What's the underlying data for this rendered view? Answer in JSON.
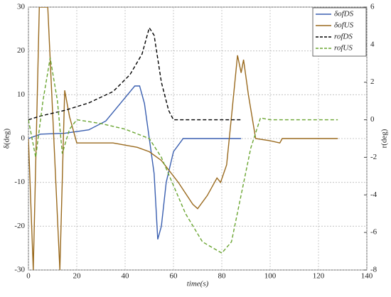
{
  "chart_data": {
    "type": "line",
    "x_label": "time(s)",
    "y_label": "δ(deg)",
    "y2_label": "r(deg)",
    "xlim": [
      0,
      140
    ],
    "xticks": [
      0,
      20,
      40,
      60,
      80,
      100,
      120,
      140
    ],
    "ylim": [
      -30,
      30
    ],
    "yticks": [
      -30,
      -20,
      -10,
      0,
      10,
      20,
      30
    ],
    "y2lim": [
      -8,
      6
    ],
    "y2ticks": [
      -8,
      -6,
      -4,
      -2,
      0,
      2,
      4,
      6
    ],
    "grid": true,
    "legend": "upper right",
    "series": [
      {
        "name": "δofDS",
        "color": "#3a5fb0",
        "dash": false,
        "x": [
          0,
          5,
          15,
          25,
          32,
          38,
          44,
          46,
          48,
          50,
          52,
          53.5,
          55,
          57,
          60,
          64,
          70,
          88
        ],
        "values": [
          0,
          1,
          1.2,
          2,
          4,
          8,
          12,
          12,
          8,
          0,
          -8,
          -23,
          -20,
          -10,
          -3,
          0,
          0,
          0
        ]
      },
      {
        "name": "δofUS",
        "color": "#9a6a1e",
        "dash": false,
        "x": [
          0,
          2,
          4.5,
          8,
          13,
          15,
          17,
          20,
          25,
          35,
          45,
          50,
          55,
          62,
          68,
          70,
          74,
          78,
          79.5,
          82,
          84,
          86.5,
          88,
          89,
          91,
          94,
          100,
          104,
          105,
          128
        ],
        "values": [
          0,
          -30,
          30,
          30,
          -30,
          11,
          5,
          -1,
          -1,
          -1,
          -2,
          -3,
          -5,
          -10,
          -15,
          -16,
          -13,
          -9,
          -10,
          -6,
          5,
          19,
          15,
          18,
          10,
          0,
          -0.5,
          -1,
          0,
          0
        ]
      },
      {
        "name": "rofDS",
        "color": "#000000",
        "dash": true,
        "axis": "y2",
        "x": [
          0,
          5,
          15,
          25,
          35,
          42,
          47,
          50,
          52,
          55,
          58,
          60,
          88
        ],
        "values": [
          0,
          0.2,
          0.5,
          0.9,
          1.5,
          2.4,
          3.5,
          4.9,
          4.5,
          2,
          0.5,
          0,
          0
        ]
      },
      {
        "name": "rofUS",
        "color": "#6aa531",
        "dash": true,
        "axis": "y2",
        "x": [
          0,
          3,
          6,
          9,
          12,
          14,
          17,
          20,
          30,
          40,
          50,
          55,
          60,
          65,
          72,
          80,
          84,
          88,
          92,
          96,
          100,
          128
        ],
        "values": [
          0,
          -2,
          1,
          3.3,
          1,
          -1.8,
          -0.5,
          0,
          -0.2,
          -0.5,
          -1,
          -2,
          -3.5,
          -5,
          -6.5,
          -7.1,
          -6.5,
          -4,
          -1.5,
          0.1,
          0,
          0
        ]
      }
    ]
  }
}
